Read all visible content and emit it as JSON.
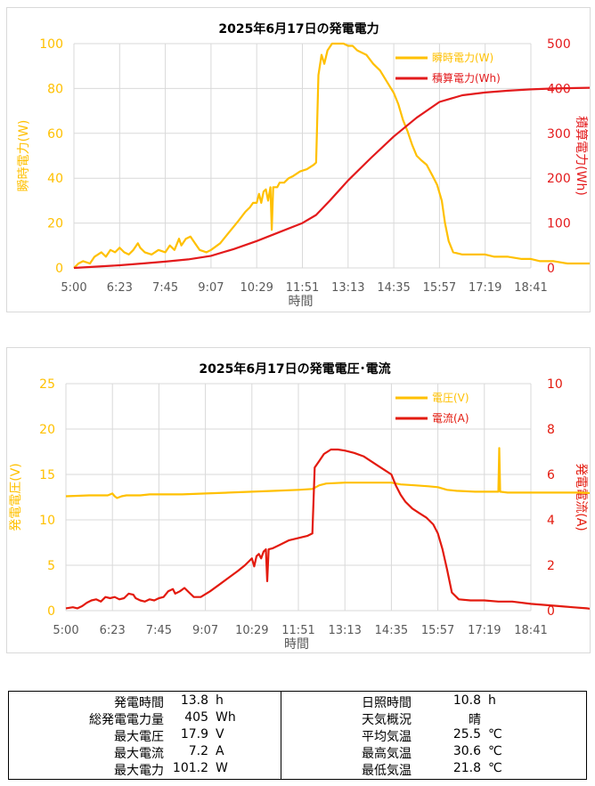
{
  "chart_data": [
    {
      "type": "line",
      "title": "2025年6月17日の発電電力",
      "xlabel": "時間",
      "x_ticks": [
        "5:00",
        "6:23",
        "7:45",
        "9:07",
        "10:29",
        "11:51",
        "13:13",
        "14:35",
        "15:57",
        "17:19",
        "18:41"
      ],
      "y_left": {
        "label": "瞬時電力(W)",
        "range": [
          0,
          100
        ],
        "ticks": [
          "0",
          "20",
          "40",
          "60",
          "80",
          "100"
        ]
      },
      "y_right": {
        "label": "積算電力(Wh)",
        "range": [
          0,
          500
        ],
        "ticks": [
          "0",
          "100",
          "200",
          "300",
          "400",
          "500"
        ]
      },
      "legend": "top-right",
      "grid": true,
      "series": [
        {
          "name": "瞬時電力(W)",
          "axis": "left",
          "color": "#ffc000",
          "points": [
            [
              0,
              0
            ],
            [
              0.1,
              2
            ],
            [
              0.2,
              3
            ],
            [
              0.35,
              2
            ],
            [
              0.45,
              5
            ],
            [
              0.6,
              7
            ],
            [
              0.7,
              5
            ],
            [
              0.8,
              8
            ],
            [
              0.9,
              7
            ],
            [
              1.0,
              9
            ],
            [
              1.1,
              7
            ],
            [
              1.2,
              6
            ],
            [
              1.3,
              8
            ],
            [
              1.4,
              11
            ],
            [
              1.45,
              9
            ],
            [
              1.55,
              7
            ],
            [
              1.7,
              6
            ],
            [
              1.85,
              8
            ],
            [
              2.0,
              7
            ],
            [
              2.1,
              10
            ],
            [
              2.2,
              8
            ],
            [
              2.3,
              13
            ],
            [
              2.35,
              10
            ],
            [
              2.45,
              13
            ],
            [
              2.55,
              14
            ],
            [
              2.65,
              11
            ],
            [
              2.75,
              8
            ],
            [
              2.9,
              7
            ],
            [
              3.0,
              8
            ],
            [
              3.2,
              11
            ],
            [
              3.4,
              16
            ],
            [
              3.6,
              21
            ],
            [
              3.75,
              25
            ],
            [
              3.85,
              27
            ],
            [
              3.92,
              29
            ],
            [
              4.0,
              29
            ],
            [
              4.05,
              33
            ],
            [
              4.1,
              29
            ],
            [
              4.15,
              34
            ],
            [
              4.2,
              35
            ],
            [
              4.25,
              30
            ],
            [
              4.3,
              36
            ],
            [
              4.33,
              17
            ],
            [
              4.36,
              36
            ],
            [
              4.45,
              36
            ],
            [
              4.5,
              38
            ],
            [
              4.6,
              38
            ],
            [
              4.7,
              40
            ],
            [
              4.8,
              41
            ],
            [
              4.95,
              43
            ],
            [
              5.1,
              44
            ],
            [
              5.25,
              46
            ],
            [
              5.3,
              47
            ],
            [
              5.35,
              86
            ],
            [
              5.42,
              95
            ],
            [
              5.48,
              91
            ],
            [
              5.55,
              97
            ],
            [
              5.65,
              100
            ],
            [
              5.9,
              100
            ],
            [
              6.0,
              99
            ],
            [
              6.1,
              99
            ],
            [
              6.2,
              97
            ],
            [
              6.3,
              96
            ],
            [
              6.4,
              95
            ],
            [
              6.55,
              91
            ],
            [
              6.7,
              88
            ],
            [
              6.85,
              83
            ],
            [
              7.0,
              78
            ],
            [
              7.1,
              73
            ],
            [
              7.2,
              66
            ],
            [
              7.3,
              61
            ],
            [
              7.4,
              55
            ],
            [
              7.5,
              50
            ],
            [
              7.6,
              48
            ],
            [
              7.72,
              46
            ],
            [
              7.85,
              41
            ],
            [
              7.95,
              37
            ],
            [
              8.05,
              30
            ],
            [
              8.12,
              20
            ],
            [
              8.2,
              12
            ],
            [
              8.3,
              7
            ],
            [
              8.5,
              6
            ],
            [
              8.7,
              6
            ],
            [
              9.0,
              6
            ],
            [
              9.2,
              5
            ],
            [
              9.5,
              5
            ],
            [
              9.8,
              4
            ],
            [
              10.0,
              4
            ],
            [
              10.2,
              3
            ],
            [
              10.5,
              3
            ],
            [
              10.8,
              2
            ],
            [
              11.0,
              2
            ],
            [
              11.3,
              2
            ],
            [
              11.5,
              1
            ],
            [
              11.6,
              1
            ]
          ]
        },
        {
          "name": "積算電力(Wh)",
          "axis": "right",
          "color": "#e31a1c",
          "points": [
            [
              0,
              0
            ],
            [
              0.5,
              3
            ],
            [
              1.0,
              6
            ],
            [
              1.5,
              10
            ],
            [
              2.0,
              14
            ],
            [
              2.5,
              19
            ],
            [
              3.0,
              27
            ],
            [
              3.5,
              42
            ],
            [
              4.0,
              60
            ],
            [
              4.5,
              80
            ],
            [
              5.0,
              100
            ],
            [
              5.3,
              118
            ],
            [
              5.6,
              150
            ],
            [
              6.0,
              195
            ],
            [
              6.5,
              245
            ],
            [
              7.0,
              293
            ],
            [
              7.5,
              335
            ],
            [
              8.0,
              370
            ],
            [
              8.5,
              385
            ],
            [
              9.0,
              391
            ],
            [
              9.5,
              395
            ],
            [
              10.0,
              398
            ],
            [
              10.5,
              400
            ],
            [
              11.0,
              401
            ],
            [
              11.6,
              402
            ]
          ]
        }
      ]
    },
    {
      "type": "line",
      "title": "2025年6月17日の発電電圧･電流",
      "xlabel": "時間",
      "x_ticks": [
        "5:00",
        "6:23",
        "7:45",
        "9:07",
        "10:29",
        "11:51",
        "13:13",
        "14:35",
        "15:57",
        "17:19",
        "18:41"
      ],
      "y_left": {
        "label": "発電電圧(V)",
        "range": [
          0,
          25
        ],
        "ticks": [
          "0",
          "5",
          "10",
          "15",
          "20",
          "25"
        ]
      },
      "y_right": {
        "label": "発電電流(A)",
        "range": [
          0,
          10
        ],
        "ticks": [
          "0",
          "2",
          "4",
          "6",
          "8",
          "10"
        ]
      },
      "legend": "top-right",
      "grid": true,
      "series": [
        {
          "name": "電圧(V)",
          "axis": "left",
          "color": "#ffc000",
          "points": [
            [
              0,
              12.6
            ],
            [
              0.5,
              12.7
            ],
            [
              0.9,
              12.7
            ],
            [
              1.0,
              12.9
            ],
            [
              1.05,
              12.6
            ],
            [
              1.1,
              12.4
            ],
            [
              1.2,
              12.6
            ],
            [
              1.3,
              12.7
            ],
            [
              1.6,
              12.7
            ],
            [
              1.8,
              12.8
            ],
            [
              2.5,
              12.8
            ],
            [
              3.0,
              12.9
            ],
            [
              3.5,
              13.0
            ],
            [
              4.0,
              13.1
            ],
            [
              4.5,
              13.2
            ],
            [
              5.0,
              13.3
            ],
            [
              5.3,
              13.4
            ],
            [
              5.45,
              13.8
            ],
            [
              5.6,
              14.0
            ],
            [
              6.0,
              14.1
            ],
            [
              6.5,
              14.1
            ],
            [
              7.0,
              14.1
            ],
            [
              7.2,
              13.9
            ],
            [
              7.5,
              13.8
            ],
            [
              7.8,
              13.7
            ],
            [
              8.0,
              13.6
            ],
            [
              8.2,
              13.3
            ],
            [
              8.4,
              13.2
            ],
            [
              8.8,
              13.1
            ],
            [
              9.2,
              13.1
            ],
            [
              9.3,
              13.1
            ],
            [
              9.32,
              17.9
            ],
            [
              9.34,
              13.1
            ],
            [
              9.5,
              13.0
            ],
            [
              10.0,
              13.0
            ],
            [
              10.5,
              13.0
            ],
            [
              11.0,
              13.0
            ],
            [
              11.6,
              12.9
            ]
          ]
        },
        {
          "name": "電流(A)",
          "axis": "right",
          "color": "#e31a0e",
          "points": [
            [
              0,
              0.1
            ],
            [
              0.15,
              0.15
            ],
            [
              0.25,
              0.1
            ],
            [
              0.35,
              0.2
            ],
            [
              0.45,
              0.35
            ],
            [
              0.55,
              0.45
            ],
            [
              0.65,
              0.5
            ],
            [
              0.75,
              0.4
            ],
            [
              0.85,
              0.6
            ],
            [
              0.95,
              0.55
            ],
            [
              1.05,
              0.6
            ],
            [
              1.15,
              0.5
            ],
            [
              1.25,
              0.55
            ],
            [
              1.35,
              0.75
            ],
            [
              1.45,
              0.7
            ],
            [
              1.5,
              0.55
            ],
            [
              1.6,
              0.45
            ],
            [
              1.7,
              0.4
            ],
            [
              1.8,
              0.5
            ],
            [
              1.9,
              0.45
            ],
            [
              2.0,
              0.55
            ],
            [
              2.1,
              0.6
            ],
            [
              2.2,
              0.85
            ],
            [
              2.3,
              0.95
            ],
            [
              2.35,
              0.75
            ],
            [
              2.45,
              0.85
            ],
            [
              2.55,
              1.0
            ],
            [
              2.65,
              0.8
            ],
            [
              2.75,
              0.6
            ],
            [
              2.9,
              0.6
            ],
            [
              3.1,
              0.85
            ],
            [
              3.3,
              1.15
            ],
            [
              3.5,
              1.45
            ],
            [
              3.7,
              1.75
            ],
            [
              3.85,
              2.0
            ],
            [
              3.95,
              2.2
            ],
            [
              4.0,
              2.3
            ],
            [
              4.05,
              1.95
            ],
            [
              4.1,
              2.4
            ],
            [
              4.15,
              2.5
            ],
            [
              4.2,
              2.3
            ],
            [
              4.25,
              2.6
            ],
            [
              4.3,
              2.7
            ],
            [
              4.33,
              1.3
            ],
            [
              4.36,
              2.7
            ],
            [
              4.45,
              2.75
            ],
            [
              4.6,
              2.9
            ],
            [
              4.8,
              3.1
            ],
            [
              5.0,
              3.2
            ],
            [
              5.2,
              3.3
            ],
            [
              5.3,
              3.4
            ],
            [
              5.35,
              6.3
            ],
            [
              5.45,
              6.6
            ],
            [
              5.55,
              6.9
            ],
            [
              5.7,
              7.1
            ],
            [
              5.85,
              7.1
            ],
            [
              6.0,
              7.05
            ],
            [
              6.2,
              6.95
            ],
            [
              6.4,
              6.8
            ],
            [
              6.55,
              6.6
            ],
            [
              6.7,
              6.4
            ],
            [
              6.85,
              6.2
            ],
            [
              7.0,
              6.0
            ],
            [
              7.1,
              5.5
            ],
            [
              7.2,
              5.1
            ],
            [
              7.3,
              4.8
            ],
            [
              7.45,
              4.5
            ],
            [
              7.6,
              4.3
            ],
            [
              7.75,
              4.1
            ],
            [
              7.9,
              3.8
            ],
            [
              8.0,
              3.4
            ],
            [
              8.1,
              2.7
            ],
            [
              8.2,
              1.8
            ],
            [
              8.3,
              0.8
            ],
            [
              8.45,
              0.5
            ],
            [
              8.7,
              0.45
            ],
            [
              9.0,
              0.45
            ],
            [
              9.3,
              0.4
            ],
            [
              9.6,
              0.4
            ],
            [
              10.0,
              0.3
            ],
            [
              10.3,
              0.25
            ],
            [
              10.6,
              0.2
            ],
            [
              10.9,
              0.15
            ],
            [
              11.2,
              0.1
            ],
            [
              11.4,
              0.05
            ],
            [
              11.6,
              0.05
            ]
          ]
        }
      ]
    }
  ],
  "summary": {
    "left": [
      {
        "label": "発電時間",
        "value": "13.8",
        "unit": "h"
      },
      {
        "label": "総発電電力量",
        "value": "405",
        "unit": "Wh"
      },
      {
        "label": "最大電圧",
        "value": "17.9",
        "unit": "V"
      },
      {
        "label": "最大電流",
        "value": "7.2",
        "unit": "A"
      },
      {
        "label": "最大電力",
        "value": "101.2",
        "unit": "W"
      }
    ],
    "right": [
      {
        "label": "日照時間",
        "value": "10.8",
        "unit": "h"
      },
      {
        "label": "天気概況",
        "value": "晴",
        "unit": ""
      },
      {
        "label": "平均気温",
        "value": "25.5",
        "unit": "℃"
      },
      {
        "label": "最高気温",
        "value": "30.6",
        "unit": "℃"
      },
      {
        "label": "最低気温",
        "value": "21.8",
        "unit": "℃"
      }
    ]
  }
}
